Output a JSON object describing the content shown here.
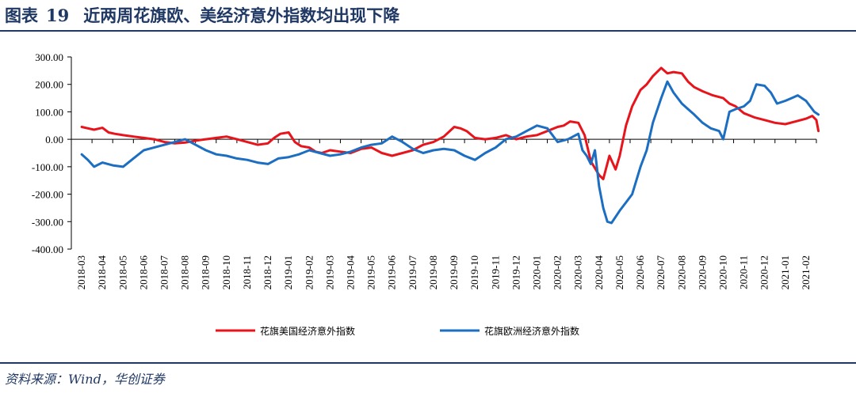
{
  "header": {
    "figure_label": "图表",
    "figure_number": "19",
    "title": "近两周花旗欧、美经济意外指数均出现下降"
  },
  "footer": {
    "source": "资料来源：Wind，华创证券"
  },
  "colors": {
    "us": "#e8141c",
    "eu": "#1b6ec2",
    "accent": "#1f3864"
  },
  "chart_data": {
    "type": "line",
    "ylim": [
      -400,
      300
    ],
    "yticks": [
      300,
      200,
      100,
      0,
      -100,
      -200,
      -300,
      -400
    ],
    "ytick_labels": [
      "300.00",
      "200.00",
      "100.00",
      "0.00",
      "-100.00",
      "-200.00",
      "-300.00",
      "-400.00"
    ],
    "categories": [
      "2018-03",
      "2018-04",
      "2018-05",
      "2018-06",
      "2018-07",
      "2018-08",
      "2018-09",
      "2018-10",
      "2018-11",
      "2018-12",
      "2019-01",
      "2019-02",
      "2019-03",
      "2019-04",
      "2019-05",
      "2019-06",
      "2019-07",
      "2019-08",
      "2019-09",
      "2019-10",
      "2019-11",
      "2019-12",
      "2020-01",
      "2020-02",
      "2020-03",
      "2020-04",
      "2020-05",
      "2020-06",
      "2020-07",
      "2020-08",
      "2020-09",
      "2020-10",
      "2020-11",
      "2020-12",
      "2021-01",
      "2021-02"
    ],
    "legend_position": "bottom",
    "series": [
      {
        "name": "花旗美国经济意外指数",
        "color": "#e8141c",
        "x": [
          0,
          0.3,
          0.6,
          1,
          1.3,
          1.6,
          2,
          2.5,
          3,
          3.5,
          4,
          4.5,
          5,
          5.5,
          6,
          6.5,
          7,
          7.5,
          8,
          8.5,
          9,
          9.3,
          9.6,
          10,
          10.3,
          10.6,
          11,
          11.3,
          11.6,
          12,
          12.5,
          13,
          13.5,
          14,
          14.5,
          15,
          15.5,
          16,
          16.5,
          17,
          17.5,
          18,
          18.3,
          18.6,
          19,
          19.5,
          20,
          20.5,
          21,
          21.5,
          22,
          22.5,
          23,
          23.3,
          23.6,
          24,
          24.3,
          24.6,
          25,
          25.2,
          25.5,
          25.8,
          26,
          26.3,
          26.6,
          27,
          27.3,
          27.6,
          28,
          28.3,
          28.6,
          29,
          29.3,
          29.6,
          30,
          30.5,
          31,
          31.3,
          31.6,
          32,
          32.5,
          33,
          33.5,
          34,
          34.5,
          35,
          35.3,
          35.5,
          35.6
        ],
        "values": [
          45,
          40,
          35,
          42,
          25,
          20,
          15,
          10,
          5,
          0,
          -10,
          -15,
          -12,
          -5,
          0,
          5,
          10,
          0,
          -10,
          -20,
          -15,
          5,
          20,
          25,
          -10,
          -25,
          -30,
          -45,
          -50,
          -40,
          -45,
          -50,
          -35,
          -30,
          -50,
          -60,
          -50,
          -40,
          -20,
          -10,
          10,
          45,
          40,
          30,
          5,
          0,
          5,
          15,
          0,
          10,
          15,
          30,
          45,
          50,
          65,
          60,
          15,
          -80,
          -130,
          -145,
          -60,
          -110,
          -60,
          50,
          120,
          180,
          200,
          230,
          260,
          240,
          245,
          240,
          210,
          190,
          175,
          160,
          150,
          130,
          120,
          95,
          80,
          70,
          60,
          55,
          65,
          75,
          85,
          70,
          30
        ]
      },
      {
        "name": "花旗欧洲经济意外指数",
        "color": "#1b6ec2",
        "x": [
          0,
          0.3,
          0.6,
          1,
          1.5,
          2,
          2.5,
          3,
          3.5,
          4,
          4.5,
          5,
          5.5,
          6,
          6.5,
          7,
          7.5,
          8,
          8.5,
          9,
          9.5,
          10,
          10.5,
          11,
          11.5,
          12,
          12.5,
          13,
          13.5,
          14,
          14.5,
          15,
          15.5,
          16,
          16.5,
          17,
          17.5,
          18,
          18.5,
          19,
          19.5,
          20,
          20.5,
          21,
          21.5,
          22,
          22.5,
          23,
          23.5,
          24,
          24.2,
          24.4,
          24.6,
          24.8,
          25,
          25.2,
          25.4,
          25.6,
          26,
          26.3,
          26.6,
          27,
          27.3,
          27.6,
          28,
          28.3,
          28.6,
          29,
          29.3,
          29.6,
          30,
          30.4,
          30.8,
          31,
          31.3,
          31.6,
          32,
          32.3,
          32.6,
          33,
          33.3,
          33.6,
          34,
          34.3,
          34.6,
          35,
          35.2,
          35.4,
          35.6
        ],
        "values": [
          -55,
          -75,
          -100,
          -85,
          -95,
          -100,
          -70,
          -40,
          -30,
          -20,
          -10,
          0,
          -20,
          -40,
          -55,
          -60,
          -70,
          -75,
          -85,
          -90,
          -70,
          -65,
          -55,
          -40,
          -50,
          -60,
          -55,
          -45,
          -30,
          -20,
          -15,
          10,
          -10,
          -35,
          -50,
          -40,
          -35,
          -40,
          -60,
          -75,
          -50,
          -30,
          0,
          10,
          30,
          50,
          40,
          -10,
          0,
          20,
          -40,
          -60,
          -90,
          -40,
          -170,
          -250,
          -300,
          -305,
          -260,
          -230,
          -200,
          -100,
          -40,
          60,
          150,
          210,
          170,
          130,
          110,
          90,
          60,
          40,
          30,
          0,
          100,
          110,
          120,
          140,
          200,
          195,
          170,
          130,
          140,
          150,
          160,
          140,
          120,
          100,
          90
        ]
      }
    ]
  }
}
